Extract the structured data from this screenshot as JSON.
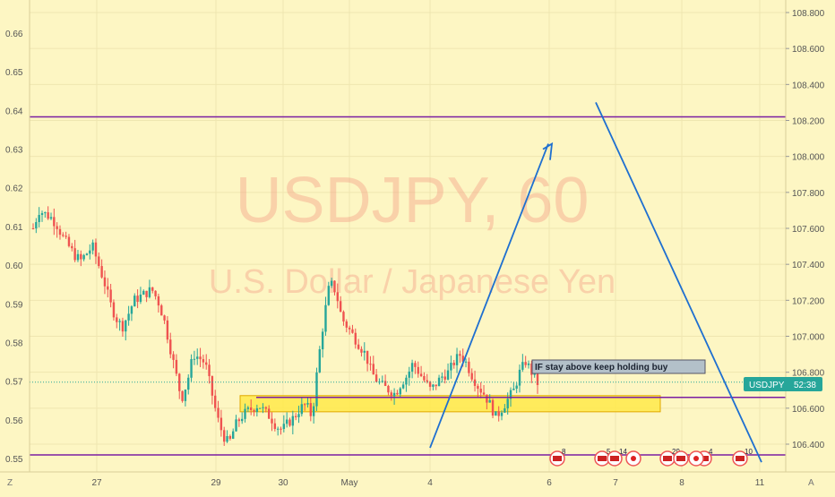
{
  "colors": {
    "background": "#fdf6c3",
    "grid": "#efe6b0",
    "up": "#26a69a",
    "down": "#ef5350",
    "level": "#7b1fa2",
    "zone_fill": "#ffe94a",
    "zone_border": "#e0a800",
    "arrow": "#1e6fd0",
    "current_price_tag": "#26a69a",
    "watermark": "#f4a58a"
  },
  "watermark": {
    "symbol": "USDJPY, 60",
    "name": "U.S. Dollar / Japanese Yen"
  },
  "left_axis": {
    "ticks": [
      "0.66",
      "0.65",
      "0.64",
      "0.63",
      "0.62",
      "0.61",
      "0.60",
      "0.59",
      "0.58",
      "0.57",
      "0.56",
      "0.55"
    ]
  },
  "right_axis": {
    "ticks": [
      "108.800",
      "108.600",
      "108.400",
      "108.200",
      "108.000",
      "107.800",
      "107.600",
      "107.400",
      "107.200",
      "107.000",
      "106.800",
      "106.600",
      "106.400"
    ]
  },
  "x_axis": {
    "ticks": [
      "27",
      "29",
      "30",
      "May",
      "4",
      "6",
      "7",
      "8",
      "11"
    ]
  },
  "annotation": {
    "text": "IF stay above keep holding buy"
  },
  "price_tag": {
    "symbol": "USDJPY",
    "countdown": "52:38"
  },
  "corner_labels": {
    "left": "Z",
    "right": "A"
  },
  "event_badges": [
    "8",
    "5",
    "14",
    "29",
    "4",
    "10"
  ],
  "chart_data": {
    "type": "candlestick",
    "symbol": "USDJPY",
    "timeframe": "60",
    "y_range_right": [
      106.28,
      108.85
    ],
    "y_range_left": [
      0.548,
      0.672
    ],
    "levels": [
      {
        "kind": "resistance",
        "price": 108.22
      },
      {
        "kind": "support",
        "price": 106.66
      },
      {
        "kind": "support",
        "price": 106.34
      }
    ],
    "zone": {
      "from": 106.58,
      "to": 106.67
    },
    "current_price": 106.745,
    "close_path": [
      107.6,
      107.7,
      107.68,
      107.66,
      107.62,
      107.55,
      107.5,
      107.45,
      107.42,
      107.46,
      107.5,
      107.4,
      107.3,
      107.18,
      107.1,
      107.05,
      107.12,
      107.2,
      107.22,
      107.24,
      107.26,
      107.2,
      107.1,
      106.95,
      106.8,
      106.65,
      106.75,
      106.9,
      106.88,
      106.85,
      106.7,
      106.55,
      106.45,
      106.4,
      106.5,
      106.55,
      106.58,
      106.6,
      106.62,
      106.58,
      106.55,
      106.5,
      106.48,
      106.52,
      106.55,
      106.6,
      106.62,
      106.55,
      106.85,
      107.1,
      107.3,
      107.25,
      107.1,
      107.05,
      107.0,
      106.95,
      106.9,
      106.8,
      106.75,
      106.72,
      106.7,
      106.68,
      106.74,
      106.78,
      106.85,
      106.8,
      106.75,
      106.7,
      106.74,
      106.78,
      106.8,
      106.86,
      106.9,
      106.85,
      106.78,
      106.72,
      106.68,
      106.62,
      106.55,
      106.6,
      106.65,
      106.7,
      106.8,
      106.86,
      106.8,
      106.74
    ]
  }
}
